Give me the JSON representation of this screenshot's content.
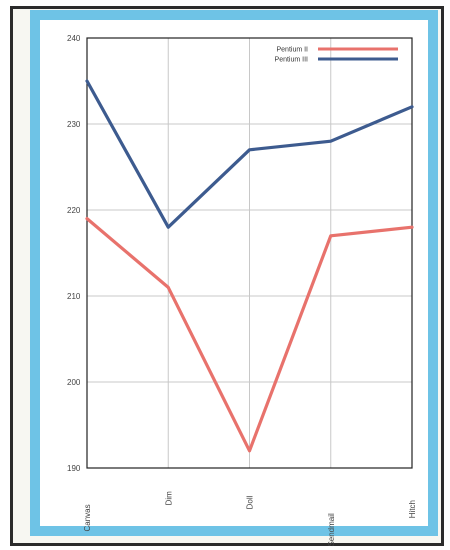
{
  "colors": {
    "frame": "#6ec3e6",
    "grid": "#c8c8c8",
    "axis": "#222222",
    "series_1": "#e8726c",
    "series_2": "#3d5b8f"
  },
  "chart_data": {
    "type": "line",
    "categories": [
      "Canvas",
      "Dim",
      "Doll",
      "Sendmail",
      "Hitch"
    ],
    "series": [
      {
        "name": "Pentium II",
        "values": [
          219,
          211,
          192,
          217,
          218
        ]
      },
      {
        "name": "Pentium III",
        "values": [
          235,
          218,
          227,
          228,
          232
        ]
      }
    ],
    "title": "",
    "xlabel": "",
    "ylabel": "",
    "ylim": [
      190,
      240
    ],
    "yticks": [
      "190",
      "200",
      "210",
      "220",
      "230",
      "240"
    ],
    "grid": true,
    "legend": "top-right"
  }
}
